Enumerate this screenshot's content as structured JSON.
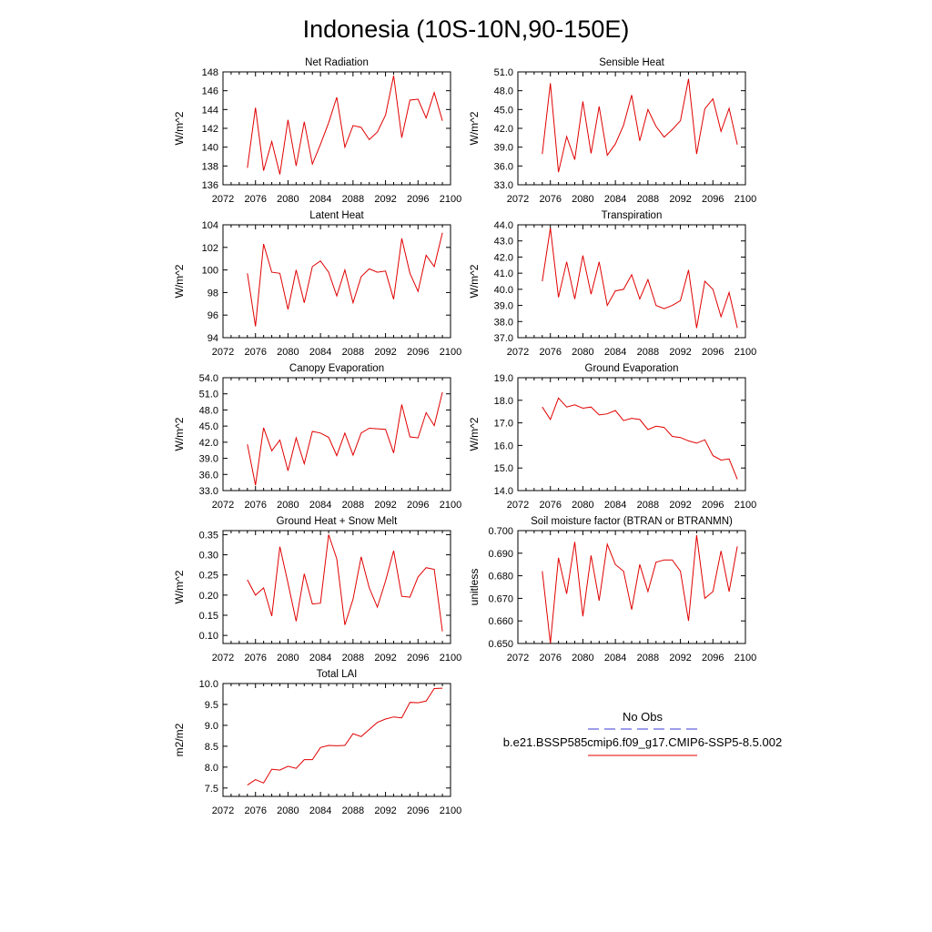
{
  "page_title": "Indonesia (10S-10N,90-150E)",
  "legend": {
    "obs_label": "No Obs",
    "model_label": "b.e21.BSSP585cmip6.f09_g17.CMIP6-SSP5-8.5.002",
    "obs_color": "#3b3bd6",
    "model_color": "#e00000"
  },
  "colors": {
    "series": "#e00000",
    "axis": "#000000"
  },
  "chart_data": [
    {
      "type": "line",
      "title": "Net Radiation",
      "ylabel": "W/m^2",
      "xlim": [
        2072,
        2100
      ],
      "ylim": [
        136,
        148
      ],
      "xticks": [
        2072,
        2076,
        2080,
        2084,
        2088,
        2092,
        2096,
        2100
      ],
      "yticks": [
        136,
        138,
        140,
        142,
        144,
        146,
        148
      ],
      "ytick_labels": [
        "136",
        "138",
        "140",
        "142",
        "144",
        "146",
        "148"
      ],
      "x": [
        2075,
        2076,
        2077,
        2078,
        2079,
        2080,
        2081,
        2082,
        2083,
        2084,
        2085,
        2086,
        2087,
        2088,
        2089,
        2090,
        2091,
        2092,
        2093,
        2094,
        2095,
        2096,
        2097,
        2098,
        2099
      ],
      "series": [
        {
          "values": [
            137.8,
            144.2,
            137.5,
            140.6,
            137.1,
            142.9,
            138.0,
            142.7,
            138.2,
            140.3,
            142.6,
            145.3,
            140.0,
            142.3,
            142.1,
            140.8,
            141.6,
            143.4,
            147.6,
            141.0,
            145.0,
            145.1,
            143.1,
            145.8,
            142.8
          ]
        }
      ]
    },
    {
      "type": "line",
      "title": "Sensible Heat",
      "ylabel": "W/m^2",
      "xlim": [
        2072,
        2100
      ],
      "ylim": [
        33,
        51
      ],
      "xticks": [
        2072,
        2076,
        2080,
        2084,
        2088,
        2092,
        2096,
        2100
      ],
      "yticks": [
        33,
        36,
        39,
        42,
        45,
        48,
        51
      ],
      "ytick_labels": [
        "33.0",
        "36.0",
        "39.0",
        "42.0",
        "45.0",
        "48.0",
        "51.0"
      ],
      "x": [
        2075,
        2076,
        2077,
        2078,
        2079,
        2080,
        2081,
        2082,
        2083,
        2084,
        2085,
        2086,
        2087,
        2088,
        2089,
        2090,
        2091,
        2092,
        2093,
        2094,
        2095,
        2096,
        2097,
        2098,
        2099
      ],
      "series": [
        {
          "values": [
            37.9,
            49.2,
            35.0,
            40.7,
            37.0,
            46.3,
            38.0,
            45.5,
            37.7,
            39.5,
            42.5,
            47.3,
            40.0,
            45.0,
            42.3,
            40.6,
            41.8,
            43.2,
            49.9,
            37.9,
            45.1,
            46.7,
            41.5,
            45.2,
            39.4
          ]
        }
      ]
    },
    {
      "type": "line",
      "title": "Latent Heat",
      "ylabel": "W/m^2",
      "xlim": [
        2072,
        2100
      ],
      "ylim": [
        94,
        104
      ],
      "xticks": [
        2072,
        2076,
        2080,
        2084,
        2088,
        2092,
        2096,
        2100
      ],
      "yticks": [
        94,
        96,
        98,
        100,
        102,
        104
      ],
      "ytick_labels": [
        "94",
        "96",
        "98",
        "100",
        "102",
        "104"
      ],
      "x": [
        2075,
        2076,
        2077,
        2078,
        2079,
        2080,
        2081,
        2082,
        2083,
        2084,
        2085,
        2086,
        2087,
        2088,
        2089,
        2090,
        2091,
        2092,
        2093,
        2094,
        2095,
        2096,
        2097,
        2098,
        2099
      ],
      "series": [
        {
          "values": [
            99.7,
            95.0,
            102.3,
            99.8,
            99.7,
            96.5,
            100.0,
            97.1,
            100.3,
            100.8,
            99.8,
            97.7,
            100.0,
            97.1,
            99.4,
            100.1,
            99.8,
            99.9,
            97.4,
            102.8,
            99.7,
            98.1,
            101.3,
            100.3,
            103.3
          ]
        }
      ]
    },
    {
      "type": "line",
      "title": "Transpiration",
      "ylabel": "W/m^2",
      "xlim": [
        2072,
        2100
      ],
      "ylim": [
        37,
        44
      ],
      "xticks": [
        2072,
        2076,
        2080,
        2084,
        2088,
        2092,
        2096,
        2100
      ],
      "yticks": [
        37,
        38,
        39,
        40,
        41,
        42,
        43,
        44
      ],
      "ytick_labels": [
        "37.0",
        "38.0",
        "39.0",
        "40.0",
        "41.0",
        "42.0",
        "43.0",
        "44.0"
      ],
      "x": [
        2075,
        2076,
        2077,
        2078,
        2079,
        2080,
        2081,
        2082,
        2083,
        2084,
        2085,
        2086,
        2087,
        2088,
        2089,
        2090,
        2091,
        2092,
        2093,
        2094,
        2095,
        2096,
        2097,
        2098,
        2099
      ],
      "series": [
        {
          "values": [
            40.5,
            43.8,
            39.5,
            41.7,
            39.4,
            42.1,
            39.7,
            41.7,
            39.0,
            39.9,
            40.0,
            40.9,
            39.4,
            40.6,
            39.0,
            38.8,
            39.0,
            39.3,
            41.2,
            37.6,
            40.5,
            40.0,
            38.3,
            39.8,
            37.6
          ]
        }
      ]
    },
    {
      "type": "line",
      "title": "Canopy Evaporation",
      "ylabel": "W/m^2",
      "xlim": [
        2072,
        2100
      ],
      "ylim": [
        33,
        54
      ],
      "xticks": [
        2072,
        2076,
        2080,
        2084,
        2088,
        2092,
        2096,
        2100
      ],
      "yticks": [
        33,
        36,
        39,
        42,
        45,
        48,
        51,
        54
      ],
      "ytick_labels": [
        "33.0",
        "36.0",
        "39.0",
        "42.0",
        "45.0",
        "48.0",
        "51.0",
        "54.0"
      ],
      "x": [
        2075,
        2076,
        2077,
        2078,
        2079,
        2080,
        2081,
        2082,
        2083,
        2084,
        2085,
        2086,
        2087,
        2088,
        2089,
        2090,
        2091,
        2092,
        2093,
        2094,
        2095,
        2096,
        2097,
        2098,
        2099
      ],
      "series": [
        {
          "values": [
            41.6,
            34.0,
            44.7,
            40.4,
            42.4,
            36.7,
            42.8,
            38.0,
            44.0,
            43.7,
            42.9,
            39.5,
            43.7,
            39.6,
            43.7,
            44.6,
            44.5,
            44.4,
            40.0,
            49.0,
            43.0,
            42.8,
            47.5,
            45.1,
            51.3
          ]
        }
      ]
    },
    {
      "type": "line",
      "title": "Ground Evaporation",
      "ylabel": "W/m^2",
      "xlim": [
        2072,
        2100
      ],
      "ylim": [
        14,
        19
      ],
      "xticks": [
        2072,
        2076,
        2080,
        2084,
        2088,
        2092,
        2096,
        2100
      ],
      "yticks": [
        14,
        15,
        16,
        17,
        18,
        19
      ],
      "ytick_labels": [
        "14.0",
        "15.0",
        "16.0",
        "17.0",
        "18.0",
        "19.0"
      ],
      "x": [
        2075,
        2076,
        2077,
        2078,
        2079,
        2080,
        2081,
        2082,
        2083,
        2084,
        2085,
        2086,
        2087,
        2088,
        2089,
        2090,
        2091,
        2092,
        2093,
        2094,
        2095,
        2096,
        2097,
        2098,
        2099
      ],
      "series": [
        {
          "values": [
            17.7,
            17.15,
            18.1,
            17.7,
            17.8,
            17.65,
            17.7,
            17.35,
            17.4,
            17.55,
            17.1,
            17.2,
            17.15,
            16.7,
            16.85,
            16.8,
            16.4,
            16.35,
            16.2,
            16.1,
            16.25,
            15.55,
            15.35,
            15.4,
            14.5
          ]
        }
      ]
    },
    {
      "type": "line",
      "title": "Ground Heat + Snow Melt",
      "ylabel": "W/m^2",
      "xlim": [
        2072,
        2100
      ],
      "ylim": [
        0.08,
        0.36
      ],
      "xticks": [
        2072,
        2076,
        2080,
        2084,
        2088,
        2092,
        2096,
        2100
      ],
      "yticks": [
        0.1,
        0.15,
        0.2,
        0.25,
        0.3,
        0.35
      ],
      "ytick_labels": [
        "0.10",
        "0.15",
        "0.20",
        "0.25",
        "0.30",
        "0.35"
      ],
      "x": [
        2075,
        2076,
        2077,
        2078,
        2079,
        2080,
        2081,
        2082,
        2083,
        2084,
        2085,
        2086,
        2087,
        2088,
        2089,
        2090,
        2091,
        2092,
        2093,
        2094,
        2095,
        2096,
        2097,
        2098,
        2099
      ],
      "series": [
        {
          "values": [
            0.238,
            0.2,
            0.218,
            0.148,
            0.32,
            0.23,
            0.135,
            0.253,
            0.178,
            0.18,
            0.35,
            0.29,
            0.126,
            0.19,
            0.295,
            0.218,
            0.17,
            0.235,
            0.31,
            0.197,
            0.195,
            0.245,
            0.268,
            0.264,
            0.11
          ]
        }
      ]
    },
    {
      "type": "line",
      "title": "Soil moisture factor (BTRAN or BTRANMN)",
      "ylabel": "unitless",
      "xlim": [
        2072,
        2100
      ],
      "ylim": [
        0.65,
        0.7
      ],
      "xticks": [
        2072,
        2076,
        2080,
        2084,
        2088,
        2092,
        2096,
        2100
      ],
      "yticks": [
        0.65,
        0.66,
        0.67,
        0.68,
        0.69,
        0.7
      ],
      "ytick_labels": [
        "0.650",
        "0.660",
        "0.670",
        "0.680",
        "0.690",
        "0.700"
      ],
      "x": [
        2075,
        2076,
        2077,
        2078,
        2079,
        2080,
        2081,
        2082,
        2083,
        2084,
        2085,
        2086,
        2087,
        2088,
        2089,
        2090,
        2091,
        2092,
        2093,
        2094,
        2095,
        2096,
        2097,
        2098,
        2099
      ],
      "series": [
        {
          "values": [
            0.682,
            0.65,
            0.688,
            0.672,
            0.695,
            0.662,
            0.689,
            0.669,
            0.694,
            0.685,
            0.682,
            0.665,
            0.685,
            0.673,
            0.686,
            0.687,
            0.687,
            0.682,
            0.66,
            0.698,
            0.67,
            0.673,
            0.691,
            0.673,
            0.693
          ]
        }
      ]
    },
    {
      "type": "line",
      "title": "Total LAI",
      "ylabel": "m2/m2",
      "xlim": [
        2072,
        2100
      ],
      "ylim": [
        7.3,
        10.0
      ],
      "xticks": [
        2072,
        2076,
        2080,
        2084,
        2088,
        2092,
        2096,
        2100
      ],
      "yticks": [
        7.5,
        8.0,
        8.5,
        9.0,
        9.5,
        10.0
      ],
      "ytick_labels": [
        "7.5",
        "8.0",
        "8.5",
        "9.0",
        "9.5",
        "10.0"
      ],
      "x": [
        2075,
        2076,
        2077,
        2078,
        2079,
        2080,
        2081,
        2082,
        2083,
        2084,
        2085,
        2086,
        2087,
        2088,
        2089,
        2090,
        2091,
        2092,
        2093,
        2094,
        2095,
        2096,
        2097,
        2098,
        2099
      ],
      "series": [
        {
          "values": [
            7.57,
            7.7,
            7.62,
            7.95,
            7.93,
            8.02,
            7.97,
            8.18,
            8.18,
            8.47,
            8.52,
            8.51,
            8.52,
            8.8,
            8.73,
            8.9,
            9.07,
            9.15,
            9.2,
            9.18,
            9.55,
            9.54,
            9.58,
            9.88,
            9.89
          ]
        }
      ]
    }
  ]
}
